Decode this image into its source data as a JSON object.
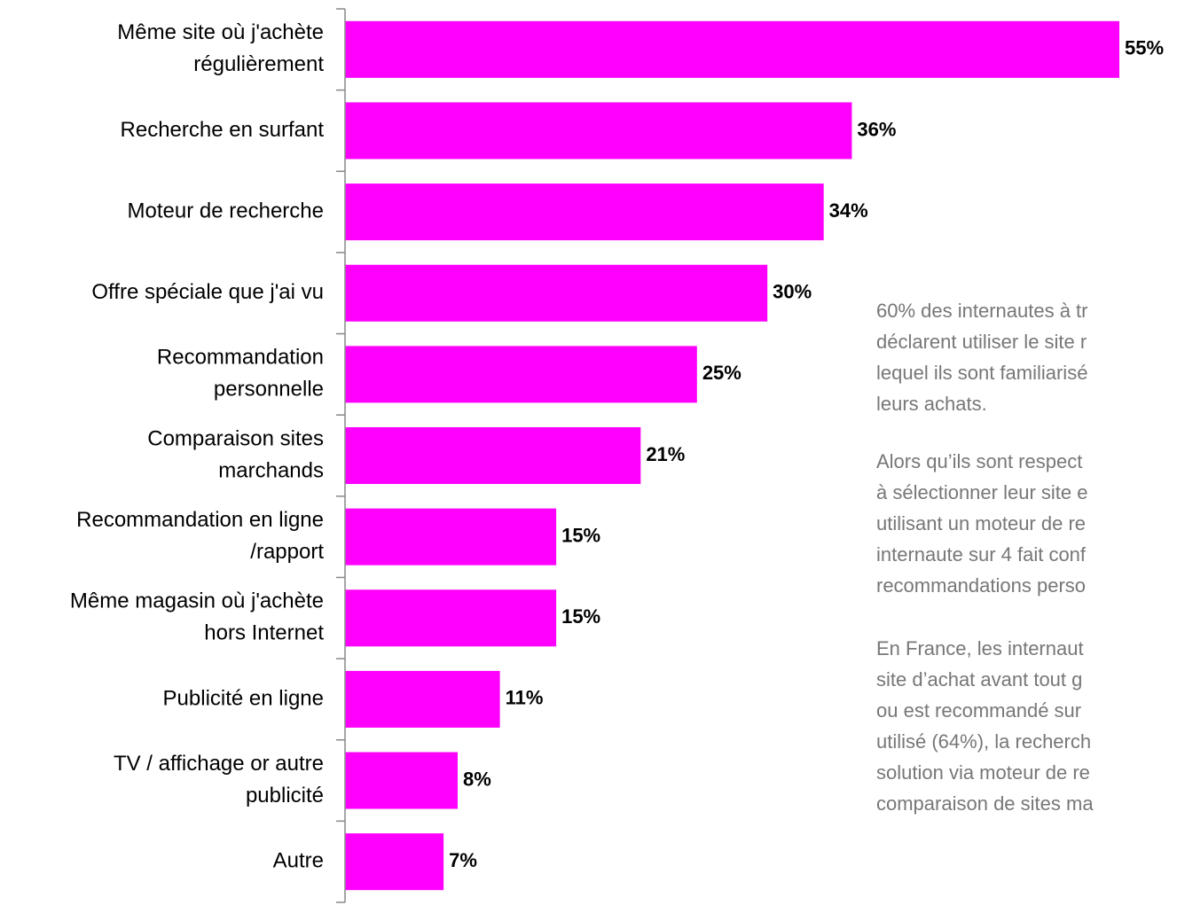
{
  "chart_data": {
    "type": "bar",
    "orientation": "horizontal",
    "color": "#ff00ff",
    "categories": [
      [
        "Même site où j'achète",
        "régulièrement"
      ],
      [
        "Recherche en surfant"
      ],
      [
        "Moteur de recherche"
      ],
      [
        "Offre spéciale que j'ai vu"
      ],
      [
        "Recommandation",
        "personnelle"
      ],
      [
        "Comparaison sites",
        "marchands"
      ],
      [
        "Recommandation en ligne",
        "/rapport"
      ],
      [
        "Même magasin où j'achète",
        "hors Internet"
      ],
      [
        "Publicité en ligne"
      ],
      [
        "TV / affichage or autre",
        "publicité"
      ],
      [
        "Autre"
      ]
    ],
    "values": [
      55,
      36,
      34,
      30,
      25,
      21,
      15,
      15,
      11,
      8,
      7
    ],
    "value_labels": [
      "55%",
      "36%",
      "34%",
      "30%",
      "25%",
      "21%",
      "15%",
      "15%",
      "11%",
      "8%",
      "7%"
    ],
    "annotations": [
      [
        "60% des internautes à tr",
        "déclarent utiliser le site r",
        "lequel ils sont familiarisé",
        "leurs achats."
      ],
      [
        "Alors qu’ils sont respect",
        "à sélectionner leur site e",
        "utilisant un moteur de re",
        "internaute sur 4 fait conf",
        "recommandations perso"
      ],
      [
        "En France, les internaut",
        "site d’achat avant tout g",
        "ou est recommandé sur",
        "utilisé (64%), la recherch",
        "solution via moteur de re",
        "comparaison de sites ma"
      ]
    ]
  }
}
